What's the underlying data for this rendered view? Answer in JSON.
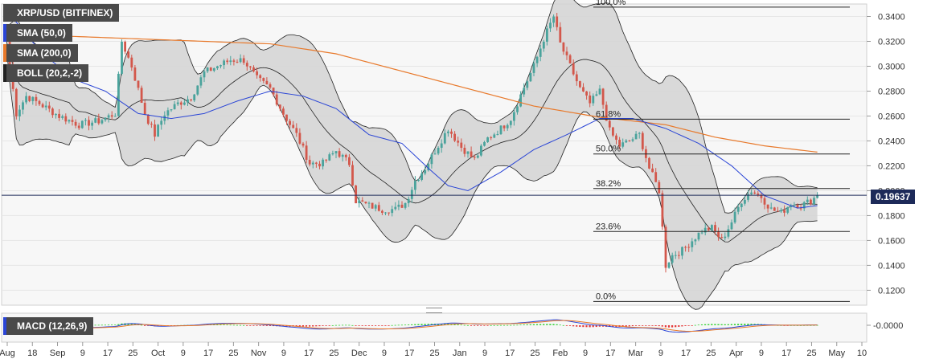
{
  "legend": {
    "pair": "XRP/USD (BITFINEX)",
    "sma50": "SMA (50,0)",
    "sma200": "SMA (200,0)",
    "boll": "BOLL (20,2,-2)",
    "macd": "MACD (12,26,9)"
  },
  "colors": {
    "up": "#4aa39c",
    "down": "#d3574b",
    "sma50": "#2a45d6",
    "sma200": "#e8792b",
    "boll": "#222222",
    "band_fill": "#d3d3d3",
    "macd_hist_up": "#3ad43a",
    "macd_hist_down": "#e53a3a"
  },
  "chart_data": {
    "type": "candlestick",
    "title": "XRP/USD (BITFINEX)",
    "current_price": "0.19637",
    "y_ticks": [
      "0.3400",
      "0.3200",
      "0.3000",
      "0.2800",
      "0.2600",
      "0.2400",
      "0.2200",
      "0.2000",
      "0.1800",
      "0.1600",
      "0.1400",
      "0.1200"
    ],
    "ylim": [
      0.108,
      0.35
    ],
    "macd_tick": "-0.0000",
    "x_labels": [
      "Aug",
      "18",
      "Sep",
      "9",
      "17",
      "25",
      "Oct",
      "9",
      "17",
      "25",
      "Nov",
      "9",
      "17",
      "25",
      "Dec",
      "9",
      "17",
      "25",
      "Jan",
      "9",
      "17",
      "25",
      "Feb",
      "9",
      "17",
      "Mar",
      "9",
      "17",
      "25",
      "Apr",
      "9",
      "17",
      "25",
      "May",
      "10"
    ],
    "fib_levels": [
      {
        "label": "100.0%",
        "price": 0.3475
      },
      {
        "label": "61.8%",
        "price": 0.2575
      },
      {
        "label": "50.0%",
        "price": 0.2295
      },
      {
        "label": "38.2%",
        "price": 0.2017
      },
      {
        "label": "23.6%",
        "price": 0.1672
      },
      {
        "label": "0.0%",
        "price": 0.111
      }
    ],
    "close_key_points": [
      [
        0,
        0.32
      ],
      [
        3,
        0.262
      ],
      [
        6,
        0.276
      ],
      [
        10,
        0.27
      ],
      [
        16,
        0.26
      ],
      [
        22,
        0.253
      ],
      [
        28,
        0.256
      ],
      [
        33,
        0.262
      ],
      [
        35,
        0.32
      ],
      [
        38,
        0.3
      ],
      [
        42,
        0.262
      ],
      [
        45,
        0.245
      ],
      [
        48,
        0.262
      ],
      [
        52,
        0.27
      ],
      [
        56,
        0.275
      ],
      [
        60,
        0.295
      ],
      [
        64,
        0.3
      ],
      [
        68,
        0.305
      ],
      [
        72,
        0.305
      ],
      [
        76,
        0.29
      ],
      [
        80,
        0.282
      ],
      [
        84,
        0.262
      ],
      [
        88,
        0.245
      ],
      [
        92,
        0.222
      ],
      [
        96,
        0.222
      ],
      [
        100,
        0.232
      ],
      [
        104,
        0.222
      ],
      [
        106,
        0.192
      ],
      [
        110,
        0.188
      ],
      [
        114,
        0.185
      ],
      [
        118,
        0.185
      ],
      [
        121,
        0.19
      ],
      [
        124,
        0.208
      ],
      [
        127,
        0.218
      ],
      [
        130,
        0.232
      ],
      [
        134,
        0.25
      ],
      [
        138,
        0.235
      ],
      [
        142,
        0.225
      ],
      [
        146,
        0.242
      ],
      [
        150,
        0.25
      ],
      [
        153,
        0.258
      ],
      [
        157,
        0.283
      ],
      [
        160,
        0.3
      ],
      [
        163,
        0.322
      ],
      [
        166,
        0.34
      ],
      [
        168,
        0.318
      ],
      [
        171,
        0.3
      ],
      [
        174,
        0.282
      ],
      [
        177,
        0.27
      ],
      [
        180,
        0.28
      ],
      [
        183,
        0.248
      ],
      [
        186,
        0.236
      ],
      [
        189,
        0.24
      ],
      [
        192,
        0.245
      ],
      [
        195,
        0.218
      ],
      [
        198,
        0.2
      ],
      [
        200,
        0.14
      ],
      [
        202,
        0.148
      ],
      [
        205,
        0.152
      ],
      [
        208,
        0.16
      ],
      [
        211,
        0.168
      ],
      [
        214,
        0.17
      ],
      [
        217,
        0.16
      ],
      [
        220,
        0.175
      ],
      [
        223,
        0.192
      ],
      [
        226,
        0.2
      ],
      [
        229,
        0.195
      ],
      [
        232,
        0.185
      ],
      [
        235,
        0.182
      ],
      [
        238,
        0.19
      ],
      [
        241,
        0.188
      ],
      [
        244,
        0.192
      ],
      [
        246,
        0.196
      ]
    ],
    "sma200_key_points": [
      [
        0,
        0.326
      ],
      [
        40,
        0.322
      ],
      [
        80,
        0.318
      ],
      [
        100,
        0.31
      ],
      [
        120,
        0.296
      ],
      [
        140,
        0.282
      ],
      [
        160,
        0.268
      ],
      [
        180,
        0.259
      ],
      [
        200,
        0.253
      ],
      [
        215,
        0.243
      ],
      [
        230,
        0.236
      ],
      [
        246,
        0.231
      ]
    ],
    "sma50_key_points": [
      [
        0,
        0.345
      ],
      [
        10,
        0.313
      ],
      [
        20,
        0.29
      ],
      [
        30,
        0.28
      ],
      [
        40,
        0.262
      ],
      [
        50,
        0.258
      ],
      [
        60,
        0.262
      ],
      [
        70,
        0.272
      ],
      [
        80,
        0.28
      ],
      [
        90,
        0.276
      ],
      [
        100,
        0.266
      ],
      [
        110,
        0.245
      ],
      [
        120,
        0.238
      ],
      [
        128,
        0.218
      ],
      [
        134,
        0.204
      ],
      [
        140,
        0.2
      ],
      [
        150,
        0.215
      ],
      [
        160,
        0.233
      ],
      [
        170,
        0.245
      ],
      [
        180,
        0.258
      ],
      [
        190,
        0.258
      ],
      [
        200,
        0.25
      ],
      [
        210,
        0.238
      ],
      [
        220,
        0.22
      ],
      [
        230,
        0.196
      ],
      [
        240,
        0.186
      ],
      [
        246,
        0.188
      ]
    ]
  }
}
